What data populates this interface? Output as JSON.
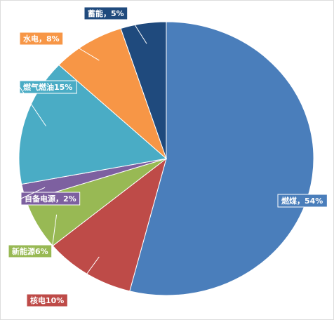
{
  "chart_data": {
    "type": "pie",
    "values": [
      54,
      10,
      6,
      2,
      15,
      8,
      5
    ],
    "value_labels": [
      "燃煤，54%",
      "核电10%",
      "新能源6%",
      "自备电源，2%",
      "燃气燃油15%",
      "水电，8%",
      "蓄能，5%"
    ],
    "colors": [
      "#4a7ebb",
      "#be4b48",
      "#98b954",
      "#7d60a0",
      "#4aacc5",
      "#f79646",
      "#1f4a7d"
    ]
  }
}
